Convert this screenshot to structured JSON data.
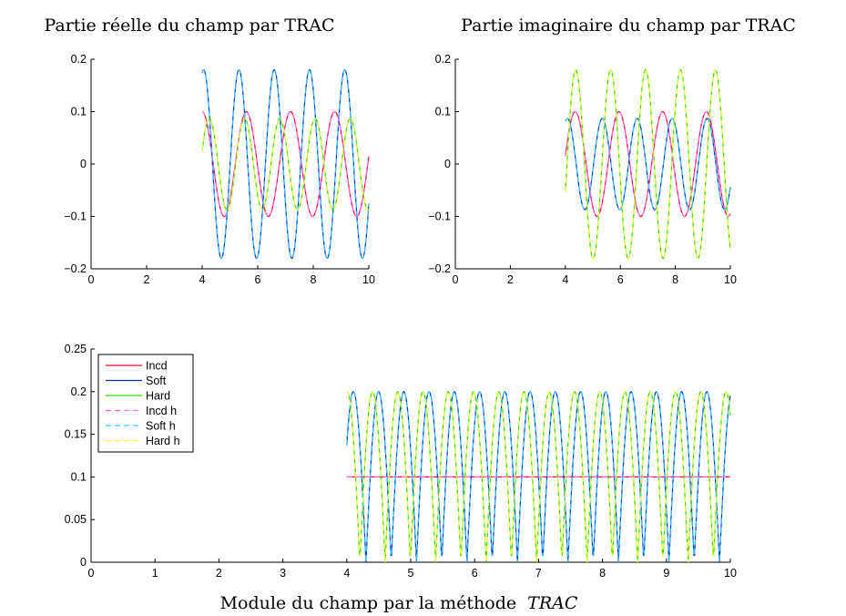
{
  "chart_data": [
    {
      "type": "line",
      "title": "Partie réelle du champ par TRAC",
      "xlabel": "",
      "ylabel": "",
      "xlim": [
        0,
        10
      ],
      "ylim": [
        -0.2,
        0.2
      ],
      "xticks": [
        0,
        2,
        4,
        6,
        8,
        10
      ],
      "xtick_labels": [
        "0",
        "2",
        "4",
        "6",
        "8",
        "10"
      ],
      "yticks": [
        -0.2,
        -0.1,
        0,
        0.1,
        0.2
      ],
      "ytick_labels": [
        "−0.2",
        "−0.1",
        "0",
        "0.1",
        "0.2"
      ],
      "grid": false,
      "x_range": [
        4,
        10
      ],
      "series": [
        {
          "name": "Incd",
          "kind": "sine",
          "amplitude": 0.1,
          "period": 1.59,
          "phase_at_x0": 1.571,
          "offset": 0,
          "color": "#ff0033",
          "dashed": false
        },
        {
          "name": "Soft",
          "kind": "sine",
          "amplitude": 0.18,
          "period": 1.27,
          "phase_at_x0": 1.3,
          "offset": 0,
          "color": "#0033cc",
          "dashed": false
        },
        {
          "name": "Hard",
          "kind": "sine",
          "amplitude": 0.087,
          "period": 1.27,
          "phase_at_x0": 0.3,
          "offset": 0,
          "color": "#33dd00",
          "dashed": false
        },
        {
          "name": "Incd h",
          "kind": "sine",
          "amplitude": 0.1,
          "period": 1.59,
          "phase_at_x0": 1.571,
          "offset": 0,
          "color": "#ff66ff",
          "dashed": true
        },
        {
          "name": "Soft h",
          "kind": "sine",
          "amplitude": 0.18,
          "period": 1.27,
          "phase_at_x0": 1.3,
          "offset": 0,
          "color": "#33ccff",
          "dashed": true
        },
        {
          "name": "Hard h",
          "kind": "sine",
          "amplitude": 0.087,
          "period": 1.27,
          "phase_at_x0": 0.3,
          "offset": 0,
          "color": "#ffff33",
          "dashed": true
        }
      ]
    },
    {
      "type": "line",
      "title": "Partie imaginaire du champ par TRAC",
      "xlabel": "",
      "ylabel": "",
      "xlim": [
        0,
        10
      ],
      "ylim": [
        -0.2,
        0.2
      ],
      "xticks": [
        0,
        2,
        4,
        6,
        8,
        10
      ],
      "xtick_labels": [
        "0",
        "2",
        "4",
        "6",
        "8",
        "10"
      ],
      "yticks": [
        -0.2,
        -0.1,
        0,
        0.1,
        0.2
      ],
      "ytick_labels": [
        "−0.2",
        "−0.1",
        "0",
        "0.1",
        "0.2"
      ],
      "grid": false,
      "x_range": [
        4,
        10
      ],
      "series": [
        {
          "name": "Incd",
          "kind": "sine",
          "amplitude": 0.1,
          "period": 1.59,
          "phase_at_x0": 0.15,
          "offset": 0,
          "color": "#ff0033",
          "dashed": false
        },
        {
          "name": "Soft",
          "kind": "sine",
          "amplitude": 0.087,
          "period": 1.27,
          "phase_at_x0": 1.2,
          "offset": 0,
          "color": "#0033cc",
          "dashed": false
        },
        {
          "name": "Hard",
          "kind": "sine",
          "amplitude": 0.18,
          "period": 1.27,
          "phase_at_x0": -0.3,
          "offset": 0,
          "color": "#33dd00",
          "dashed": false
        },
        {
          "name": "Incd h",
          "kind": "sine",
          "amplitude": 0.1,
          "period": 1.59,
          "phase_at_x0": 0.15,
          "offset": 0,
          "color": "#ff66ff",
          "dashed": true
        },
        {
          "name": "Soft h",
          "kind": "sine",
          "amplitude": 0.087,
          "period": 1.27,
          "phase_at_x0": 1.2,
          "offset": 0,
          "color": "#33ccff",
          "dashed": true
        },
        {
          "name": "Hard h",
          "kind": "sine",
          "amplitude": 0.18,
          "period": 1.27,
          "phase_at_x0": -0.3,
          "offset": 0,
          "color": "#ffff33",
          "dashed": true
        }
      ]
    },
    {
      "type": "line",
      "title": "Module du champ par la méthode",
      "title_italic": "TRAC",
      "xlabel": "",
      "ylabel": "",
      "xlim": [
        0,
        10
      ],
      "ylim": [
        0,
        0.25
      ],
      "xticks": [
        0,
        1,
        2,
        3,
        4,
        5,
        6,
        7,
        8,
        9,
        10
      ],
      "xtick_labels": [
        "0",
        "1",
        "2",
        "3",
        "4",
        "5",
        "6",
        "7",
        "8",
        "9",
        "10"
      ],
      "yticks": [
        0,
        0.05,
        0.1,
        0.15,
        0.2,
        0.25
      ],
      "ytick_labels": [
        "0",
        "0.05",
        "0.1",
        "0.15",
        "0.2",
        "0.25"
      ],
      "grid": false,
      "x_range": [
        4,
        10
      ],
      "legend": {
        "position": "top-left",
        "entries": [
          {
            "label": "Incd",
            "color": "#ff0033",
            "dashed": false
          },
          {
            "label": "Soft",
            "color": "#0033cc",
            "dashed": false
          },
          {
            "label": "Hard",
            "color": "#33dd00",
            "dashed": false
          },
          {
            "label": "Incd h",
            "color": "#ff66ff",
            "dashed": true
          },
          {
            "label": "Soft h",
            "color": "#33ccff",
            "dashed": true
          },
          {
            "label": "Hard h",
            "color": "#ffff33",
            "dashed": true
          }
        ]
      },
      "series": [
        {
          "name": "Incd",
          "kind": "const",
          "value": 0.1,
          "color": "#ff0033",
          "dashed": false
        },
        {
          "name": "Soft",
          "kind": "abssine",
          "amplitude": 0.2,
          "period": 0.79,
          "zero_at": 4.3,
          "color": "#0033cc",
          "dashed": false
        },
        {
          "name": "Hard",
          "kind": "abssine",
          "amplitude": 0.2,
          "period": 0.79,
          "zero_at": 4.6,
          "color": "#33dd00",
          "dashed": false
        },
        {
          "name": "Incd h",
          "kind": "const",
          "value": 0.1,
          "color": "#ff66ff",
          "dashed": true
        },
        {
          "name": "Soft h",
          "kind": "abssine",
          "amplitude": 0.2,
          "period": 0.79,
          "zero_at": 4.3,
          "color": "#33ccff",
          "dashed": true
        },
        {
          "name": "Hard h",
          "kind": "abssine",
          "amplitude": 0.2,
          "period": 0.79,
          "zero_at": 4.6,
          "color": "#ffff33",
          "dashed": true
        }
      ]
    }
  ]
}
